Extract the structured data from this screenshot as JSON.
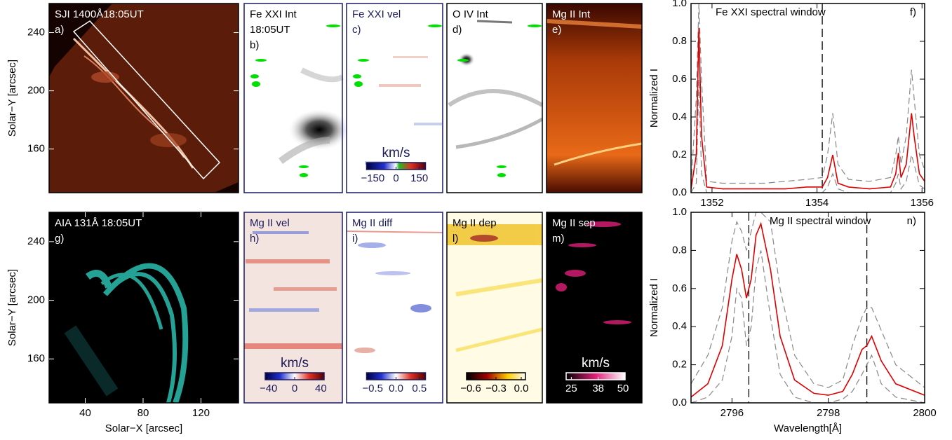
{
  "chart_data": [
    {
      "type": "image",
      "title": "SJI 1400Å18:05UT",
      "label": "a)",
      "ylabel": "Solar−Y [arcsec]",
      "xlim": [
        15,
        146
      ],
      "ylim": [
        130,
        260
      ],
      "yticks": [
        240,
        200,
        160
      ]
    },
    {
      "type": "image",
      "title": "Fe XXI Int",
      "subtitle": "18:05UT",
      "label": "b)"
    },
    {
      "type": "image",
      "title": "Fe XXI vel",
      "label": "c)",
      "colorbar": {
        "label": "km/s",
        "lim": [
          -190,
          190
        ],
        "ticks": [
          {
            "value": -150,
            "label": "−150"
          },
          0,
          150
        ]
      }
    },
    {
      "type": "image",
      "title": "O IV Int",
      "label": "d)"
    },
    {
      "type": "image",
      "title": "Mg II Int",
      "label": "e)"
    },
    {
      "type": "line",
      "title": "Fe XXI spectral window",
      "label": "f)",
      "ylabel": "Normalized I",
      "xlim": [
        1351.6,
        1356.05
      ],
      "ylim": [
        0,
        1
      ],
      "xticks": [
        1352,
        1354,
        1356
      ],
      "yticks": [
        {
          "value": 0,
          "label": "0.0"
        },
        0.2,
        0.4,
        0.6,
        0.8,
        {
          "value": 1,
          "label": "1.0"
        }
      ],
      "x": [
        1351.6,
        1351.7,
        1351.75,
        1351.8,
        1351.9,
        1352.2,
        1352.6,
        1353.0,
        1353.4,
        1353.8,
        1354.1,
        1354.2,
        1354.3,
        1354.4,
        1354.6,
        1355.0,
        1355.4,
        1355.5,
        1355.55,
        1355.6,
        1355.7,
        1355.8,
        1355.85,
        1355.95,
        1356.05
      ],
      "series": [
        {
          "color": "#888888",
          "style": "dashed",
          "values": [
            0.04,
            0.5,
            1.0,
            0.6,
            0.06,
            0.05,
            0.05,
            0.05,
            0.06,
            0.07,
            0.08,
            0.2,
            0.42,
            0.15,
            0.07,
            0.06,
            0.08,
            0.2,
            0.3,
            0.15,
            0.3,
            0.65,
            0.5,
            0.2,
            0.12
          ]
        },
        {
          "color": "#888888",
          "style": "dashed",
          "values": [
            0.0,
            0.05,
            0.6,
            0.1,
            0.0,
            0.0,
            0.0,
            0.0,
            0.0,
            0.0,
            0.0,
            0.03,
            0.1,
            0.02,
            0.0,
            0.0,
            0.0,
            0.05,
            0.1,
            0.02,
            0.06,
            0.2,
            0.15,
            0.04,
            0.02
          ]
        },
        {
          "color": "#dd0000",
          "style": "solid",
          "values": [
            0.02,
            0.2,
            0.87,
            0.3,
            0.03,
            0.02,
            0.02,
            0.02,
            0.02,
            0.03,
            0.03,
            0.08,
            0.2,
            0.05,
            0.03,
            0.02,
            0.03,
            0.1,
            0.21,
            0.08,
            0.15,
            0.42,
            0.3,
            0.1,
            0.06
          ]
        }
      ],
      "reference_lines": [
        1354.1
      ]
    },
    {
      "type": "image",
      "title": "AIA 131Å 18:05UT",
      "label": "g)",
      "ylabel": "Solar−Y [arcsec]",
      "xlabel": "Solar−X [arcsec]",
      "xlim": [
        15,
        146
      ],
      "ylim": [
        130,
        260
      ],
      "yticks": [
        240,
        200,
        160
      ],
      "xticks": [
        40,
        80,
        120
      ]
    },
    {
      "type": "image",
      "title": "Mg II vel",
      "label": "h)",
      "colorbar": {
        "label": "km/s",
        "lim": [
          -45,
          45
        ],
        "ticks": [
          {
            "value": -40,
            "label": "−40"
          },
          0,
          40
        ]
      }
    },
    {
      "type": "image",
      "title": "Mg II diff",
      "label": "i)",
      "colorbar": {
        "lim": [
          -0.63,
          0.63
        ],
        "ticks": [
          {
            "value": -0.5,
            "label": "−0.5"
          },
          {
            "value": 0,
            "label": "0.0"
          },
          0.5
        ]
      }
    },
    {
      "type": "image",
      "title": "Mg II dep",
      "label": "l)",
      "colorbar": {
        "lim": [
          -0.65,
          0.05
        ],
        "ticks": [
          {
            "value": -0.6,
            "label": "−0.6"
          },
          {
            "value": -0.3,
            "label": "−0.3"
          },
          {
            "value": 0,
            "label": "0.0"
          }
        ]
      }
    },
    {
      "type": "image",
      "title": "Mg II sep",
      "label": "m)",
      "colorbar": {
        "label": "km/s",
        "lim": [
          22.5,
          51
        ],
        "ticks": [
          25,
          38,
          50
        ]
      }
    },
    {
      "type": "line",
      "title": "Mg II spectral window",
      "label": "n)",
      "ylabel": "Normalized I",
      "xlabel": "Wavelength[Å]",
      "xlim": [
        2795.15,
        2800
      ],
      "ylim": [
        0,
        1
      ],
      "xticks": [
        2796,
        2798,
        2800
      ],
      "yticks": [
        {
          "value": 0,
          "label": "0.0"
        },
        0.2,
        0.4,
        0.6,
        0.8,
        {
          "value": 1,
          "label": "1.0"
        }
      ],
      "x": [
        2795.15,
        2795.5,
        2795.8,
        2796.0,
        2796.1,
        2796.2,
        2796.3,
        2796.4,
        2796.5,
        2796.6,
        2796.8,
        2797.0,
        2797.3,
        2797.7,
        2798.0,
        2798.3,
        2798.5,
        2798.7,
        2798.8,
        2798.9,
        2799.1,
        2799.4,
        2800.0
      ],
      "series": [
        {
          "color": "#888888",
          "style": "dashed",
          "values": [
            0.1,
            0.25,
            0.5,
            0.85,
            0.95,
            0.9,
            0.8,
            0.9,
            1.0,
            1.0,
            0.95,
            0.6,
            0.25,
            0.1,
            0.08,
            0.12,
            0.3,
            0.45,
            0.5,
            0.5,
            0.38,
            0.2,
            0.08
          ]
        },
        {
          "color": "#888888",
          "style": "dashed",
          "values": [
            0.0,
            0.03,
            0.12,
            0.35,
            0.6,
            0.55,
            0.3,
            0.4,
            0.7,
            0.8,
            0.45,
            0.15,
            0.03,
            0.0,
            0.0,
            0.02,
            0.06,
            0.15,
            0.2,
            0.25,
            0.1,
            0.03,
            0.0
          ]
        },
        {
          "color": "#dd0000",
          "style": "solid",
          "values": [
            0.03,
            0.1,
            0.3,
            0.65,
            0.78,
            0.7,
            0.55,
            0.65,
            0.88,
            0.94,
            0.7,
            0.35,
            0.12,
            0.05,
            0.04,
            0.06,
            0.15,
            0.28,
            0.3,
            0.35,
            0.22,
            0.1,
            0.04
          ]
        }
      ],
      "reference_lines": [
        2796.35,
        2798.8
      ]
    }
  ]
}
